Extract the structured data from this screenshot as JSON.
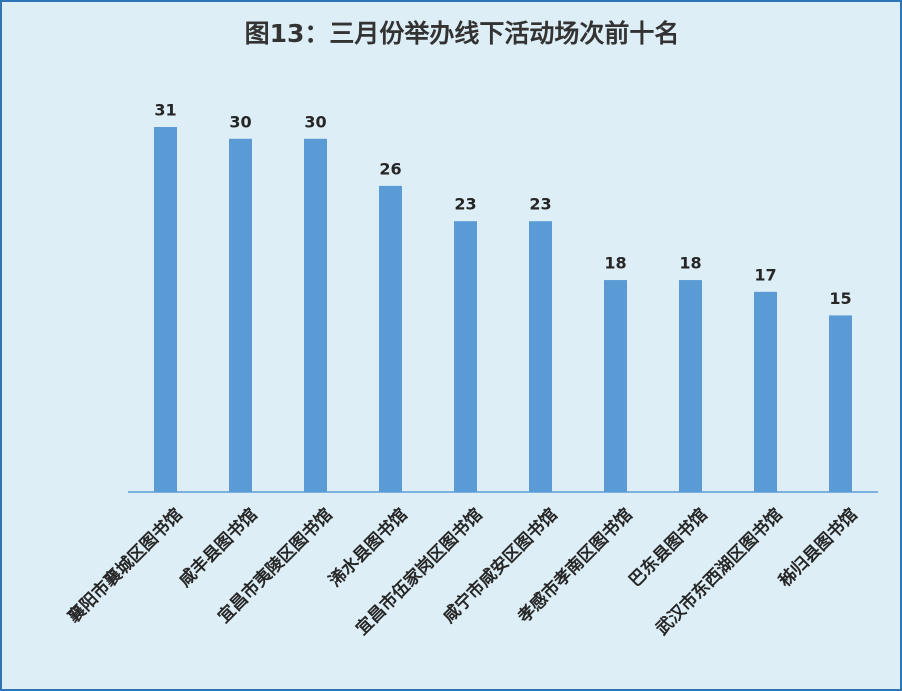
{
  "chart_data": {
    "type": "bar",
    "title": "图13：三月份举办线下活动场次前十名",
    "categories": [
      "襄阳市襄城区图书馆",
      "咸丰县图书馆",
      "宜昌市夷陵区图书馆",
      "浠水县图书馆",
      "宜昌市伍家岗区图书馆",
      "咸宁市咸安区图书馆",
      "孝感市孝南区图书馆",
      "巴东县图书馆",
      "武汉市东西湖区图书馆",
      "秭归县图书馆"
    ],
    "values": [
      31,
      30,
      30,
      26,
      23,
      23,
      18,
      18,
      17,
      15
    ],
    "color": "#5b9bd5"
  }
}
